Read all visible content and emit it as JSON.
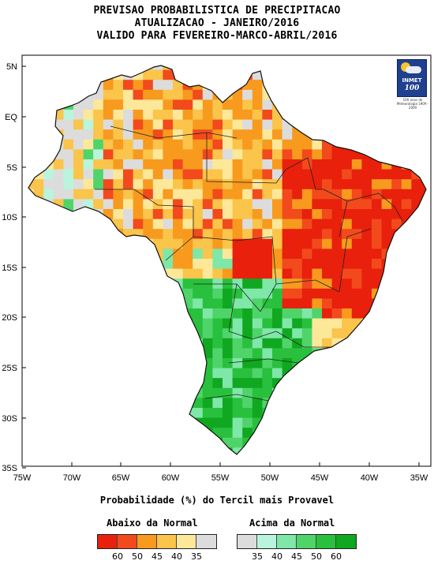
{
  "header": {
    "line1": "PREVISAO PROBABILISTICA DE PRECIPITACAO",
    "line2": "ATUALIZACAO - JANEIRO/2016",
    "line3": "VALIDO PARA FEVEREIRO-MARCO-ABRIL/2016"
  },
  "map": {
    "lat_labels": [
      "5N",
      "EQ",
      "5S",
      "10S",
      "15S",
      "20S",
      "25S",
      "30S",
      "35S"
    ],
    "lon_labels": [
      "75W",
      "70W",
      "65W",
      "60W",
      "55W",
      "50W",
      "45W",
      "40W",
      "35W"
    ]
  },
  "logo": {
    "name": "INMET",
    "number": "100",
    "caption": "100 anos de Meteorologia 1909 - 2009"
  },
  "legend": {
    "caption": "Probabilidade (%) do Tercil mais Provavel",
    "below_title": "Abaixo da Normal",
    "above_title": "Acima da Normal",
    "below_ticks": [
      "60",
      "50",
      "45",
      "40",
      "35"
    ],
    "above_ticks": [
      "35",
      "40",
      "45",
      "50",
      "60"
    ],
    "below_colors": [
      "#e8200c",
      "#f24a1c",
      "#f79a1e",
      "#fbc44a",
      "#fde89a",
      "#dcdcdc"
    ],
    "above_colors": [
      "#dcdcdc",
      "#b9f5dc",
      "#7fe7a8",
      "#4fd46a",
      "#29c03e",
      "#10a820"
    ]
  }
}
